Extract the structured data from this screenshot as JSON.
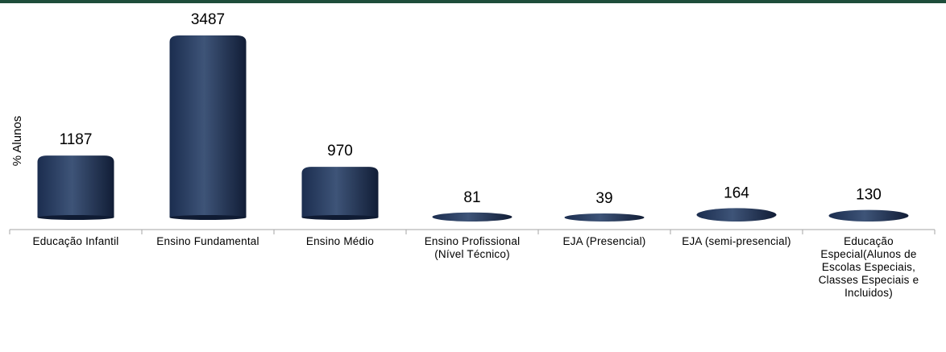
{
  "chart_data": {
    "type": "bar",
    "ylabel": "% Alunos",
    "categories": [
      "Educação Infantil",
      "Ensino Fundamental",
      "Ensino Médio",
      "Ensino Profissional (Nível Técnico)",
      "EJA (Presencial)",
      "EJA (semi-presencial)",
      "Educação Especial(Alunos de Escolas Especiais, Classes Especiais e Incluidos)"
    ],
    "values": [
      1187,
      3487,
      970,
      81,
      39,
      164,
      130
    ],
    "ylim": [
      0,
      3487
    ],
    "grid": false,
    "legend": "none",
    "colors": {
      "bar": "#1b2d4f",
      "bar_highlight": "#3e5478",
      "axis": "#a6a6a6",
      "top_bar": "#1e4d3a"
    }
  }
}
